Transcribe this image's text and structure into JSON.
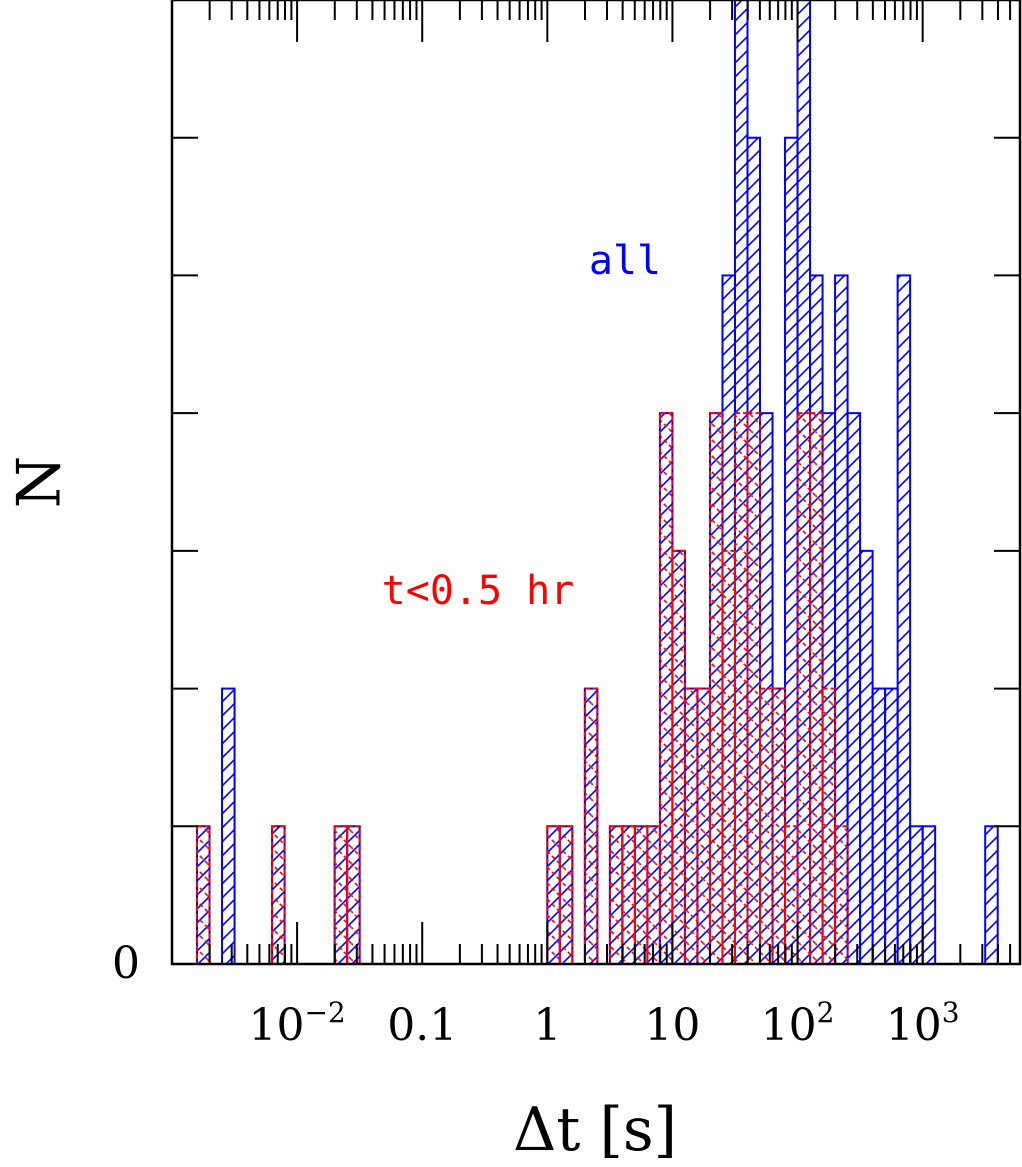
{
  "chart_data": {
    "type": "bar",
    "subtype": "histogram",
    "x_scale": "log",
    "xlim": [
      0.001,
      6000
    ],
    "ylim": [
      0,
      7
    ],
    "xlabel": "Δt   [s]",
    "ylabel": "N",
    "y_tick_labels": [
      {
        "value": 0,
        "label": "0"
      }
    ],
    "x_tick_labels": [
      {
        "value": 0.01,
        "base": "10",
        "exp": "−2"
      },
      {
        "value": 0.1,
        "base": "0.1",
        "exp": ""
      },
      {
        "value": 1,
        "base": "1",
        "exp": ""
      },
      {
        "value": 10,
        "base": "10",
        "exp": ""
      },
      {
        "value": 100,
        "base": "10",
        "exp": "2"
      },
      {
        "value": 1000,
        "base": "10",
        "exp": "3"
      }
    ],
    "bin_edges_log10": [
      -2.8,
      -2.7,
      -2.6,
      -2.5,
      -2.4,
      -2.3,
      -2.2,
      -2.1,
      -2.0,
      -1.9,
      -1.8,
      -1.7,
      -1.6,
      -1.5,
      -1.4,
      -1.3,
      -1.2,
      -1.1,
      -1.0,
      -0.9,
      -0.8,
      -0.7,
      -0.6,
      -0.5,
      -0.4,
      -0.3,
      -0.2,
      -0.1,
      0.0,
      0.1,
      0.2,
      0.3,
      0.4,
      0.5,
      0.6,
      0.7,
      0.8,
      0.9,
      1.0,
      1.1,
      1.2,
      1.3,
      1.4,
      1.5,
      1.6,
      1.7,
      1.8,
      1.9,
      2.0,
      2.1,
      2.2,
      2.3,
      2.4,
      2.5,
      2.6,
      2.7,
      2.8,
      2.9,
      3.0,
      3.1,
      3.2,
      3.3,
      3.4,
      3.5,
      3.6,
      3.7
    ],
    "series": [
      {
        "name": "all",
        "color": "#0000ff",
        "counts": [
          1,
          0,
          2,
          0,
          0,
          0,
          1,
          0,
          0,
          0,
          0,
          1,
          1,
          0,
          0,
          0,
          0,
          0,
          0,
          0,
          0,
          0,
          0,
          0,
          0,
          0,
          0,
          0,
          1,
          1,
          0,
          2,
          0,
          1,
          1,
          1,
          1,
          4,
          3,
          2,
          2,
          4,
          5,
          7,
          6,
          4,
          2,
          6,
          7,
          5,
          4,
          5,
          4,
          3,
          2,
          2,
          5,
          1,
          1,
          0,
          0,
          0,
          0,
          1,
          0
        ],
        "hatch": "up-right"
      },
      {
        "name": "t<0.5 hr",
        "color": "#ff0000",
        "counts": [
          1,
          0,
          0,
          0,
          0,
          0,
          1,
          0,
          0,
          0,
          0,
          1,
          1,
          0,
          0,
          0,
          0,
          0,
          0,
          0,
          0,
          0,
          0,
          0,
          0,
          0,
          0,
          0,
          1,
          1,
          0,
          2,
          0,
          1,
          1,
          1,
          1,
          4,
          3,
          2,
          2,
          4,
          3,
          4,
          4,
          2,
          2,
          1,
          4,
          4,
          2,
          1,
          0,
          0,
          0,
          0,
          0,
          0,
          0,
          0,
          0,
          0,
          0,
          0,
          0
        ],
        "hatch": "down-right"
      }
    ],
    "annotations": [
      {
        "text": "all",
        "color": "#0000ff"
      },
      {
        "text": "t<0.5 hr",
        "color": "#ff0000"
      }
    ]
  }
}
